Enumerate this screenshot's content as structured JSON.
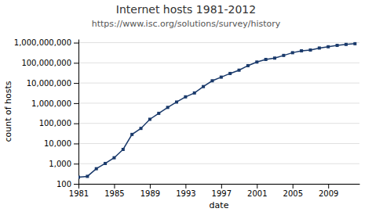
{
  "chart_data": {
    "type": "line",
    "title": "Internet hosts 1981-2012",
    "subtitle": "https://www.isc.org/solutions/survey/history",
    "xlabel": "date",
    "ylabel": "count of hosts",
    "x": [
      1981,
      1982,
      1983,
      1984,
      1985,
      1986,
      1987,
      1988,
      1989,
      1990,
      1991,
      1992,
      1993,
      1994,
      1995,
      1996,
      1997,
      1998,
      1999,
      2000,
      2001,
      2002,
      2003,
      2004,
      2005,
      2006,
      2007,
      2008,
      2009,
      2010,
      2011,
      2012
    ],
    "values": [
      213,
      235,
      562,
      1024,
      1961,
      5089,
      28174,
      56000,
      159000,
      313000,
      617000,
      1136000,
      2056000,
      3212000,
      6642000,
      12881000,
      19540000,
      29670000,
      43230000,
      72398092,
      109574429,
      147344723,
      171638297,
      233101481,
      317646084,
      394991609,
      433193199,
      541677360,
      625226456,
      732740819,
      818374269,
      888234698
    ],
    "color": "#1a3a6b",
    "marker": "square",
    "log": "y",
    "grid": "y",
    "xlim": [
      1981,
      2012.5
    ],
    "ylim": [
      100,
      1500000000
    ],
    "xticks": [
      1981,
      1985,
      1989,
      1993,
      1997,
      2001,
      2005,
      2009
    ],
    "yticks": [
      100,
      {
        "value": 1000,
        "label": "1,000"
      },
      {
        "value": 10000,
        "label": "10,000"
      },
      {
        "value": 100000,
        "label": "100,000"
      },
      {
        "value": 1000000,
        "label": "1,000,000"
      },
      {
        "value": 10000000,
        "label": "10,000,000"
      },
      {
        "value": 100000000,
        "label": "100,000,000"
      },
      {
        "value": 1000000000,
        "label": "1,000,000,000"
      }
    ]
  }
}
